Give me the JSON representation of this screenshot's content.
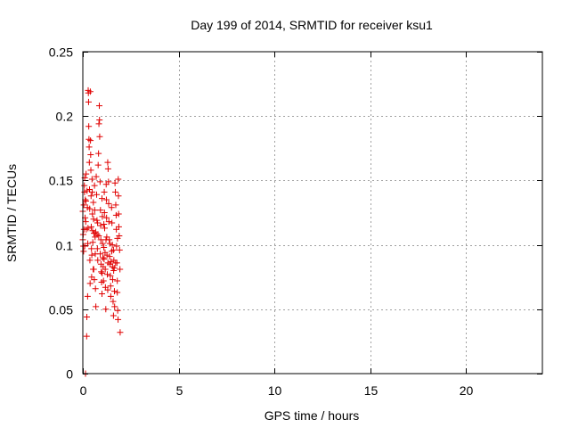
{
  "chart_data": {
    "type": "scatter",
    "title": "Day 199 of 2014, SRMTID for receiver ksu1",
    "xlabel": "GPS time / hours",
    "ylabel": "SRMTID / TECUs",
    "xlim": [
      0,
      24
    ],
    "ylim": [
      0,
      0.25
    ],
    "xticks": [
      0,
      5,
      10,
      15,
      20
    ],
    "xtick_labels": [
      "0",
      "5",
      "10",
      "15",
      "20"
    ],
    "yticks": [
      0,
      0.05,
      0.1,
      0.15,
      0.2,
      0.25
    ],
    "ytick_labels": [
      "0",
      "0.05",
      "0.1",
      "0.15",
      "0.2",
      "0.25"
    ],
    "grid": true,
    "marker": "+",
    "color": "#e00000",
    "series": [
      {
        "name": "SRMTID",
        "points": [
          [
            0.0,
            0.126
          ],
          [
            0.0,
            0.104
          ],
          [
            0.02,
            0.108
          ],
          [
            0.04,
            0.095
          ],
          [
            0.05,
            0.131
          ],
          [
            0.06,
            0.112
          ],
          [
            0.08,
            0.146
          ],
          [
            0.1,
            0.152
          ],
          [
            0.1,
            0.099
          ],
          [
            0.12,
            0.121
          ],
          [
            0.13,
            0.135
          ],
          [
            0.14,
            0.0
          ],
          [
            0.15,
            0.118
          ],
          [
            0.17,
            0.155
          ],
          [
            0.18,
            0.112
          ],
          [
            0.2,
            0.029
          ],
          [
            0.21,
            0.044
          ],
          [
            0.22,
            0.142
          ],
          [
            0.24,
            0.129
          ],
          [
            0.25,
            0.06
          ],
          [
            0.26,
            0.101
          ],
          [
            0.28,
            0.22
          ],
          [
            0.29,
            0.218
          ],
          [
            0.3,
            0.211
          ],
          [
            0.31,
            0.192
          ],
          [
            0.32,
            0.182
          ],
          [
            0.33,
            0.176
          ],
          [
            0.34,
            0.164
          ],
          [
            0.35,
            0.143
          ],
          [
            0.36,
            0.128
          ],
          [
            0.37,
            0.088
          ],
          [
            0.38,
            0.07
          ],
          [
            0.39,
            0.219
          ],
          [
            0.4,
            0.181
          ],
          [
            0.41,
            0.17
          ],
          [
            0.42,
            0.158
          ],
          [
            0.43,
            0.138
          ],
          [
            0.44,
            0.114
          ],
          [
            0.45,
            0.097
          ],
          [
            0.46,
            0.075
          ],
          [
            0.48,
            0.151
          ],
          [
            0.49,
            0.141
          ],
          [
            0.5,
            0.124
          ],
          [
            0.51,
            0.111
          ],
          [
            0.52,
            0.102
          ],
          [
            0.54,
            0.081
          ],
          [
            0.55,
            0.133
          ],
          [
            0.56,
            0.12
          ],
          [
            0.58,
            0.109
          ],
          [
            0.6,
            0.073
          ],
          [
            0.61,
            0.146
          ],
          [
            0.62,
            0.127
          ],
          [
            0.64,
            0.106
          ],
          [
            0.65,
            0.093
          ],
          [
            0.66,
            0.066
          ],
          [
            0.68,
            0.052
          ],
          [
            0.7,
            0.153
          ],
          [
            0.72,
            0.139
          ],
          [
            0.74,
            0.119
          ],
          [
            0.75,
            0.108
          ],
          [
            0.76,
            0.097
          ],
          [
            0.78,
            0.088
          ],
          [
            0.8,
            0.162
          ],
          [
            0.82,
            0.171
          ],
          [
            0.84,
            0.194
          ],
          [
            0.86,
            0.208
          ],
          [
            0.87,
            0.197
          ],
          [
            0.88,
            0.184
          ],
          [
            0.9,
            0.149
          ],
          [
            0.92,
            0.127
          ],
          [
            0.93,
            0.115
          ],
          [
            0.94,
            0.104
          ],
          [
            0.95,
            0.085
          ],
          [
            0.96,
            0.079
          ],
          [
            0.98,
            0.071
          ],
          [
            1.0,
            0.062
          ],
          [
            1.0,
            0.136
          ],
          [
            1.02,
            0.122
          ],
          [
            1.03,
            0.101
          ],
          [
            1.05,
            0.09
          ],
          [
            1.06,
            0.083
          ],
          [
            1.08,
            0.072
          ],
          [
            1.1,
            0.116
          ],
          [
            1.1,
            0.098
          ],
          [
            1.12,
            0.141
          ],
          [
            1.13,
            0.125
          ],
          [
            1.14,
            0.113
          ],
          [
            1.16,
            0.094
          ],
          [
            1.17,
            0.081
          ],
          [
            1.18,
            0.067
          ],
          [
            1.2,
            0.05
          ],
          [
            1.22,
            0.147
          ],
          [
            1.23,
            0.135
          ],
          [
            1.24,
            0.121
          ],
          [
            1.25,
            0.106
          ],
          [
            1.26,
            0.092
          ],
          [
            1.28,
            0.077
          ],
          [
            1.3,
            0.065
          ],
          [
            1.3,
            0.164
          ],
          [
            1.32,
            0.159
          ],
          [
            1.34,
            0.149
          ],
          [
            1.35,
            0.132
          ],
          [
            1.36,
            0.118
          ],
          [
            1.38,
            0.104
          ],
          [
            1.4,
            0.091
          ],
          [
            1.42,
            0.085
          ],
          [
            1.44,
            0.076
          ],
          [
            1.45,
            0.068
          ],
          [
            1.46,
            0.06
          ],
          [
            1.48,
            0.087
          ],
          [
            1.5,
            0.129
          ],
          [
            1.52,
            0.117
          ],
          [
            1.54,
            0.1
          ],
          [
            1.55,
            0.083
          ],
          [
            1.56,
            0.073
          ],
          [
            1.58,
            0.056
          ],
          [
            1.6,
            0.045
          ],
          [
            1.6,
            0.096
          ],
          [
            1.62,
            0.088
          ],
          [
            1.64,
            0.082
          ],
          [
            1.65,
            0.064
          ],
          [
            1.66,
            0.052
          ],
          [
            1.68,
            0.148
          ],
          [
            1.7,
            0.141
          ],
          [
            1.72,
            0.131
          ],
          [
            1.74,
            0.123
          ],
          [
            1.75,
            0.112
          ],
          [
            1.76,
            0.099
          ],
          [
            1.78,
            0.086
          ],
          [
            1.8,
            0.072
          ],
          [
            1.8,
            0.063
          ],
          [
            1.82,
            0.049
          ],
          [
            1.84,
            0.042
          ],
          [
            1.85,
            0.151
          ],
          [
            1.86,
            0.138
          ],
          [
            1.87,
            0.124
          ],
          [
            1.88,
            0.114
          ],
          [
            1.9,
            0.107
          ],
          [
            1.92,
            0.096
          ],
          [
            1.94,
            0.081
          ],
          [
            1.95,
            0.032
          ],
          [
            0.03,
            0.099
          ],
          [
            0.09,
            0.141
          ],
          [
            0.16,
            0.134
          ],
          [
            0.27,
            0.113
          ],
          [
            0.47,
            0.092
          ],
          [
            0.57,
            0.081
          ],
          [
            0.67,
            0.11
          ],
          [
            0.77,
            0.117
          ],
          [
            0.83,
            0.107
          ],
          [
            0.91,
            0.093
          ],
          [
            1.01,
            0.078
          ],
          [
            1.11,
            0.089
          ],
          [
            1.21,
            0.104
          ],
          [
            1.31,
            0.086
          ],
          [
            1.41,
            0.101
          ],
          [
            1.51,
            0.095
          ],
          [
            1.61,
            0.08
          ],
          [
            1.71,
            0.086
          ],
          [
            1.81,
            0.105
          ]
        ]
      }
    ]
  }
}
